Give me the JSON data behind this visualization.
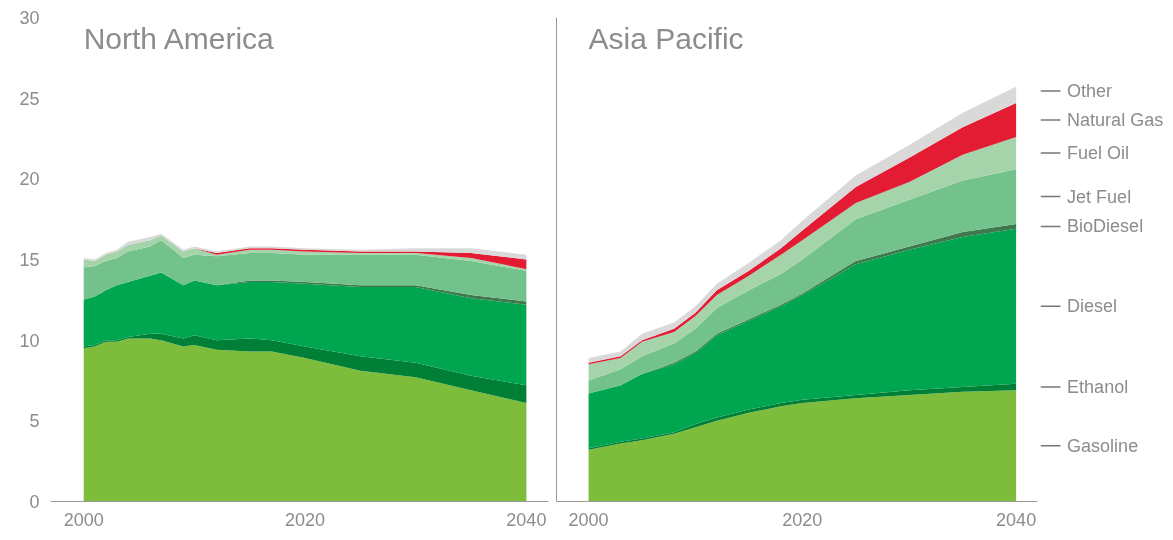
{
  "chart_data": [
    {
      "type": "area",
      "stacked": true,
      "title": "North America",
      "grid": false,
      "x": [
        2000,
        2001,
        2002,
        2003,
        2004,
        2006,
        2007,
        2009,
        2010,
        2012,
        2015,
        2017,
        2020,
        2025,
        2030,
        2035,
        2040
      ],
      "xlim": [
        1997,
        2042
      ],
      "xticks": [
        2000,
        2020,
        2040
      ],
      "ylim": [
        0,
        30
      ],
      "yticks": [
        0,
        5,
        10,
        15,
        20,
        25,
        30
      ],
      "series": [
        {
          "color": "#7ebd3c",
          "values": [
            9.5,
            9.6,
            9.9,
            9.9,
            10.1,
            10.1,
            10.0,
            9.6,
            9.7,
            9.4,
            9.3,
            9.3,
            8.9,
            8.1,
            7.7,
            6.9,
            6.1
          ]
        },
        {
          "color": "#008037",
          "values": [
            0.1,
            0.1,
            0.1,
            0.1,
            0.1,
            0.3,
            0.4,
            0.5,
            0.6,
            0.6,
            0.8,
            0.7,
            0.7,
            0.9,
            0.9,
            0.9,
            1.1
          ]
        },
        {
          "color": "#00a54f",
          "values": [
            2.9,
            3.0,
            3.1,
            3.4,
            3.4,
            3.6,
            3.8,
            3.3,
            3.4,
            3.4,
            3.5,
            3.6,
            3.9,
            4.3,
            4.7,
            4.8,
            5.0
          ]
        },
        {
          "color": "#3d7a4e",
          "values": [
            0,
            0,
            0,
            0,
            0,
            0,
            0,
            0,
            0,
            0,
            0.1,
            0.1,
            0.1,
            0.1,
            0.1,
            0.2,
            0.2
          ]
        },
        {
          "color": "#73c18b",
          "values": [
            2.0,
            1.9,
            1.8,
            1.7,
            1.9,
            1.8,
            2.0,
            1.7,
            1.6,
            1.8,
            1.7,
            1.7,
            1.7,
            1.9,
            1.9,
            2.1,
            1.9
          ]
        },
        {
          "color": "#a5d4ab",
          "values": [
            0.5,
            0.3,
            0.4,
            0.4,
            0.4,
            0.4,
            0.3,
            0.4,
            0.4,
            0.1,
            0.2,
            0.2,
            0.2,
            0.1,
            0.1,
            0.2,
            0.1
          ]
        },
        {
          "color": "#e31b33",
          "values": [
            0,
            0,
            0,
            0,
            0,
            0,
            0,
            0,
            0,
            0.1,
            0.1,
            0.1,
            0.1,
            0.1,
            0.1,
            0.3,
            0.6
          ]
        },
        {
          "color": "#d9d9d9",
          "values": [
            0.1,
            0.1,
            0.1,
            0.1,
            0.2,
            0.2,
            0.1,
            0.1,
            0.1,
            0.1,
            0.1,
            0.1,
            0.1,
            0.1,
            0.2,
            0.3,
            0.3
          ]
        }
      ]
    },
    {
      "type": "area",
      "stacked": true,
      "title": "Asia Pacific",
      "grid": false,
      "tick_labels": "x",
      "x": [
        2000,
        2003,
        2005,
        2008,
        2010,
        2012,
        2015,
        2018,
        2020,
        2025,
        2030,
        2035,
        2040
      ],
      "xlim": [
        1997,
        2042
      ],
      "xticks": [
        2000,
        2020,
        2040
      ],
      "ylim": [
        0,
        30
      ],
      "yticks": [
        0,
        5,
        10,
        15,
        20,
        25,
        30
      ],
      "series": [
        {
          "name": "Gasoline",
          "color": "#7ebd3c",
          "values": [
            3.2,
            3.6,
            3.8,
            4.2,
            4.6,
            5.0,
            5.5,
            5.9,
            6.1,
            6.4,
            6.6,
            6.8,
            6.9
          ]
        },
        {
          "name": "Ethanol",
          "color": "#008037",
          "values": [
            0.1,
            0.1,
            0.1,
            0.1,
            0.2,
            0.2,
            0.2,
            0.2,
            0.2,
            0.2,
            0.3,
            0.3,
            0.4
          ]
        },
        {
          "name": "Diesel",
          "color": "#00a54f",
          "values": [
            3.4,
            3.5,
            4.0,
            4.2,
            4.4,
            5.1,
            5.5,
            6.0,
            6.5,
            8.1,
            8.7,
            9.3,
            9.6
          ]
        },
        {
          "name": "BioDiesel",
          "color": "#3d7a4e",
          "values": [
            0,
            0,
            0,
            0.1,
            0.1,
            0.1,
            0.1,
            0.1,
            0.1,
            0.2,
            0.2,
            0.3,
            0.3
          ]
        },
        {
          "name": "Jet Fuel",
          "color": "#73c18b",
          "values": [
            0.8,
            1.0,
            1.1,
            1.2,
            1.4,
            1.6,
            1.8,
            1.9,
            2.1,
            2.6,
            2.9,
            3.2,
            3.4
          ]
        },
        {
          "name": "Fuel Oil",
          "color": "#a5d4ab",
          "values": [
            1.0,
            0.7,
            0.9,
            0.7,
            0.8,
            0.8,
            0.9,
            1.2,
            1.2,
            1.0,
            1.1,
            1.6,
            2.0
          ]
        },
        {
          "name": "Natural Gas",
          "color": "#e31b33",
          "values": [
            0.1,
            0.1,
            0.1,
            0.2,
            0.2,
            0.3,
            0.3,
            0.4,
            0.6,
            1.0,
            1.5,
            1.7,
            2.1
          ]
        },
        {
          "name": "Other",
          "color": "#d9d9d9",
          "values": [
            0.3,
            0.3,
            0.4,
            0.4,
            0.4,
            0.4,
            0.5,
            0.5,
            0.6,
            0.7,
            0.8,
            0.9,
            1.0
          ]
        }
      ]
    }
  ]
}
